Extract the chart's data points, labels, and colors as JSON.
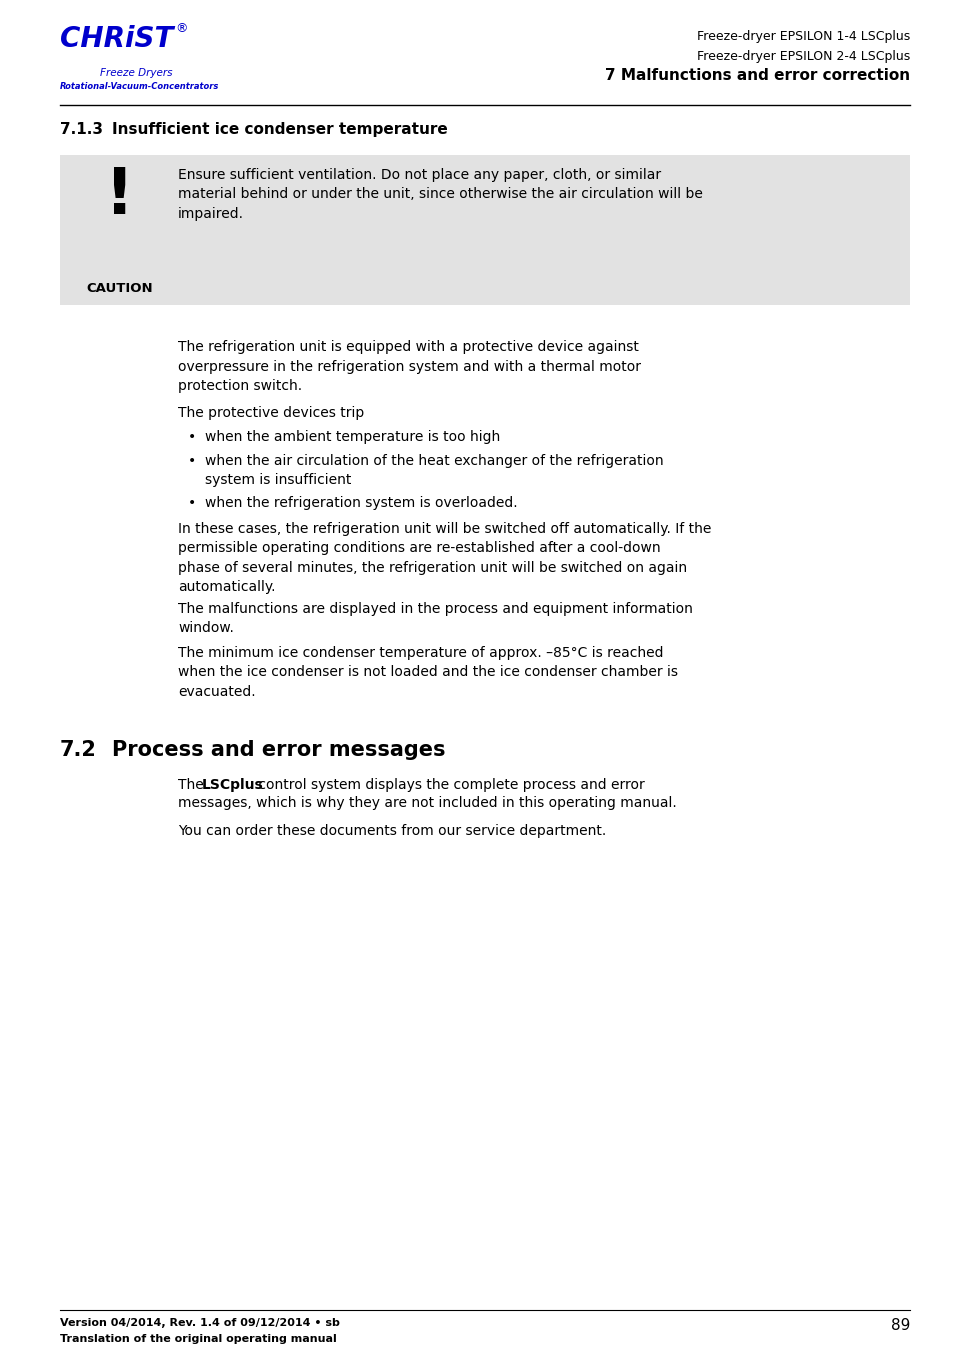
{
  "page_width": 9.54,
  "page_height": 13.5,
  "bg_color": "#ffffff",
  "header": {
    "right_line1": "Freeze-dryer EPSILON 1-4 LSCplus",
    "right_line2": "Freeze-dryer EPSILON 2-4 LSCplus",
    "right_line3": "7 Malfunctions and error correction",
    "logo_color": "#0000cc"
  },
  "section_713": {
    "number": "7.1.3",
    "title": "Insufficient ice condenser temperature"
  },
  "caution_box": {
    "bg_color": "#e2e2e2",
    "label": "CAUTION",
    "text": "Ensure sufficient ventilation. Do not place any paper, cloth, or similar\nmaterial behind or under the unit, since otherwise the air circulation will be\nimpaired."
  },
  "body_para1": "The refrigeration unit is equipped with a protective device against\noverpressure in the refrigeration system and with a thermal motor\nprotection switch.",
  "body_para2": "The protective devices trip",
  "bullets": [
    "when the ambient temperature is too high",
    "when the air circulation of the heat exchanger of the refrigeration\nsystem is insufficient",
    "when the refrigeration system is overloaded."
  ],
  "body_para3": "In these cases, the refrigeration unit will be switched off automatically. If the\npermissible operating conditions are re-established after a cool-down\nphase of several minutes, the refrigeration unit will be switched on again\nautomatically.",
  "body_para4": "The malfunctions are displayed in the process and equipment information\nwindow.",
  "body_para5": "The minimum ice condenser temperature of approx. –85°C is reached\nwhen the ice condenser is not loaded and the ice condenser chamber is\nevacuated.",
  "section_72": {
    "number": "7.2",
    "title": "Process and error messages"
  },
  "s72_para1_pre": "The ",
  "s72_para1_bold": "LSCplus",
  "s72_para1_post": " control system displays the complete process and error\nmessages, which is why they are not included in this operating manual.",
  "s72_para2": "You can order these documents from our service department.",
  "footer": {
    "line1": "Version 04/2014, Rev. 1.4 of 09/12/2014 • sb",
    "line2": "Translation of the original operating manual",
    "page_number": "89"
  }
}
